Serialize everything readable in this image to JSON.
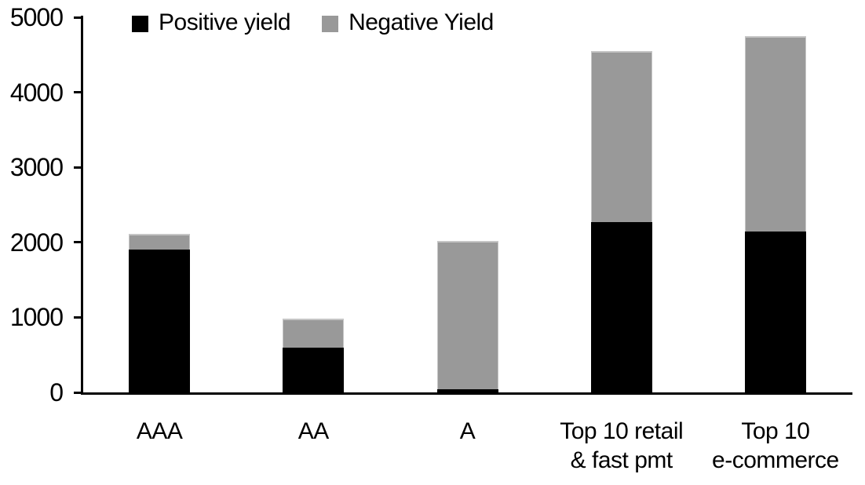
{
  "chart_data": {
    "type": "bar",
    "stacked": true,
    "title": "",
    "xlabel": "",
    "ylabel": "",
    "categories": [
      "AAA",
      "AA",
      "A",
      "Top 10 retail & fast pmt",
      "Top 10 e-commerce"
    ],
    "category_label_lines": [
      [
        "AAA"
      ],
      [
        "AA"
      ],
      [
        "A"
      ],
      [
        "Top 10 retail",
        "& fast pmt"
      ],
      [
        "Top 10",
        "e-commerce"
      ]
    ],
    "series": [
      {
        "name": "Positive yield",
        "color": "#000000",
        "values": [
          1900,
          600,
          40,
          2270,
          2140
        ]
      },
      {
        "name": "Negative Yield",
        "color": "#999999",
        "values": [
          210,
          380,
          1980,
          2280,
          2610
        ]
      }
    ],
    "totals": [
      2110,
      980,
      2020,
      4550,
      4750
    ],
    "ylim": [
      0,
      5000
    ],
    "yticks": [
      0,
      1000,
      2000,
      3000,
      4000,
      5000
    ],
    "grid": false,
    "legend_position": "top-left",
    "colors": {
      "positive": "#000000",
      "negative": "#999999",
      "axis": "#000000",
      "background": "#ffffff"
    }
  }
}
